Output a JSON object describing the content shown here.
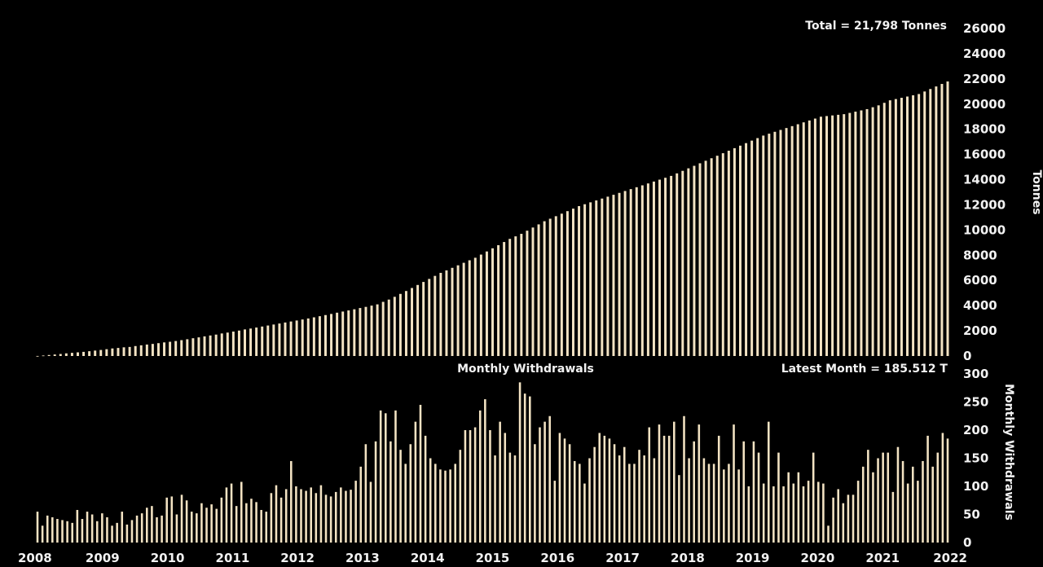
{
  "colors": {
    "background": "#000000",
    "bar": "#f3e3c3",
    "text": "#f2f2f2"
  },
  "chart_data": [
    {
      "type": "bar",
      "panel": "top",
      "annotation": "Total = 21,798 Tonnes",
      "ylabel": "Tonnes",
      "ylim": [
        0,
        26000
      ],
      "yticks": [
        0,
        2000,
        4000,
        6000,
        8000,
        10000,
        12000,
        14000,
        16000,
        18000,
        20000,
        22000,
        24000,
        26000
      ],
      "yaxis_position": "right",
      "xlim": [
        2008,
        2022
      ],
      "xticks": [
        2008,
        2009,
        2010,
        2011,
        2012,
        2013,
        2014,
        2015,
        2016,
        2017,
        2018,
        2019,
        2020,
        2021,
        2022
      ],
      "series": [
        {
          "values": [
            5,
            40,
            80,
            120,
            160,
            210,
            250,
            290,
            330,
            380,
            430,
            480,
            540,
            600,
            640,
            690,
            720,
            790,
            850,
            910,
            960,
            1020,
            1080,
            1130,
            1190,
            1260,
            1330,
            1410,
            1480,
            1560,
            1630,
            1700,
            1790,
            1860,
            1940,
            2020,
            2110,
            2180,
            2260,
            2340,
            2420,
            2500,
            2580,
            2660,
            2740,
            2820,
            2900,
            2980,
            3070,
            3160,
            3250,
            3340,
            3440,
            3530,
            3620,
            3710,
            3810,
            3900,
            4000,
            4100,
            4300,
            4480,
            4700,
            4930,
            5160,
            5400,
            5640,
            5880,
            6120,
            6360,
            6600,
            6800,
            7000,
            7200,
            7400,
            7600,
            7800,
            8050,
            8300,
            8550,
            8800,
            9050,
            9300,
            9500,
            9700,
            9950,
            10200,
            10450,
            10700,
            10900,
            11100,
            11300,
            11500,
            11700,
            11900,
            12050,
            12200,
            12350,
            12500,
            12650,
            12800,
            12950,
            13100,
            13250,
            13400,
            13550,
            13700,
            13850,
            14000,
            14150,
            14300,
            14500,
            14700,
            14900,
            15100,
            15300,
            15500,
            15700,
            15900,
            16100,
            16300,
            16500,
            16700,
            16900,
            17100,
            17300,
            17500,
            17650,
            17800,
            17950,
            18100,
            18250,
            18400,
            18550,
            18700,
            18850,
            19000,
            19050,
            19100,
            19150,
            19200,
            19300,
            19400,
            19500,
            19600,
            19750,
            19900,
            20100,
            20300,
            20400,
            20500,
            20600,
            20700,
            20800,
            21000,
            21200,
            21400,
            21600,
            21798
          ]
        }
      ]
    },
    {
      "type": "bar",
      "panel": "bottom",
      "title": "Monthly Withdrawals",
      "annotation": "Latest Month = 185.512 T",
      "ylabel": "Monthly Withdrawals",
      "ylim": [
        0,
        300
      ],
      "yticks": [
        0,
        50,
        100,
        150,
        200,
        250,
        300
      ],
      "yaxis_position": "right",
      "xlim": [
        2008,
        2022
      ],
      "xticks": [
        2008,
        2009,
        2010,
        2011,
        2012,
        2013,
        2014,
        2015,
        2016,
        2017,
        2018,
        2019,
        2020,
        2021,
        2022
      ],
      "series": [
        {
          "values": [
            55,
            30,
            48,
            45,
            42,
            40,
            38,
            35,
            58,
            42,
            55,
            50,
            38,
            52,
            45,
            30,
            35,
            55,
            32,
            40,
            48,
            52,
            62,
            65,
            45,
            48,
            80,
            82,
            50,
            85,
            75,
            55,
            52,
            70,
            62,
            68,
            60,
            80,
            98,
            105,
            65,
            108,
            70,
            78,
            72,
            58,
            55,
            88,
            102,
            80,
            95,
            145,
            100,
            95,
            92,
            98,
            88,
            102,
            85,
            82,
            90,
            98,
            92,
            94,
            110,
            135,
            175,
            108,
            180,
            235,
            230,
            180,
            235,
            165,
            140,
            175,
            215,
            245,
            190,
            150,
            140,
            130,
            128,
            130,
            140,
            165,
            200,
            200,
            205,
            235,
            255,
            200,
            155,
            215,
            195,
            160,
            155,
            285,
            265,
            260,
            175,
            205,
            215,
            225,
            110,
            195,
            185,
            175,
            145,
            140,
            105,
            150,
            170,
            195,
            190,
            185,
            175,
            155,
            170,
            140,
            140,
            165,
            155,
            205,
            150,
            210,
            190,
            190,
            215,
            120,
            225,
            150,
            180,
            210,
            150,
            140,
            140,
            190,
            130,
            140,
            210,
            130,
            180,
            100,
            180,
            160,
            105,
            215,
            100,
            160,
            100,
            125,
            105,
            125,
            100,
            110,
            160,
            108,
            105,
            30,
            80,
            95,
            70,
            85,
            85,
            110,
            135,
            165,
            125,
            150,
            160,
            160,
            90,
            170,
            145,
            105,
            135,
            110,
            145,
            190,
            135,
            160,
            195,
            185
          ]
        }
      ]
    }
  ]
}
